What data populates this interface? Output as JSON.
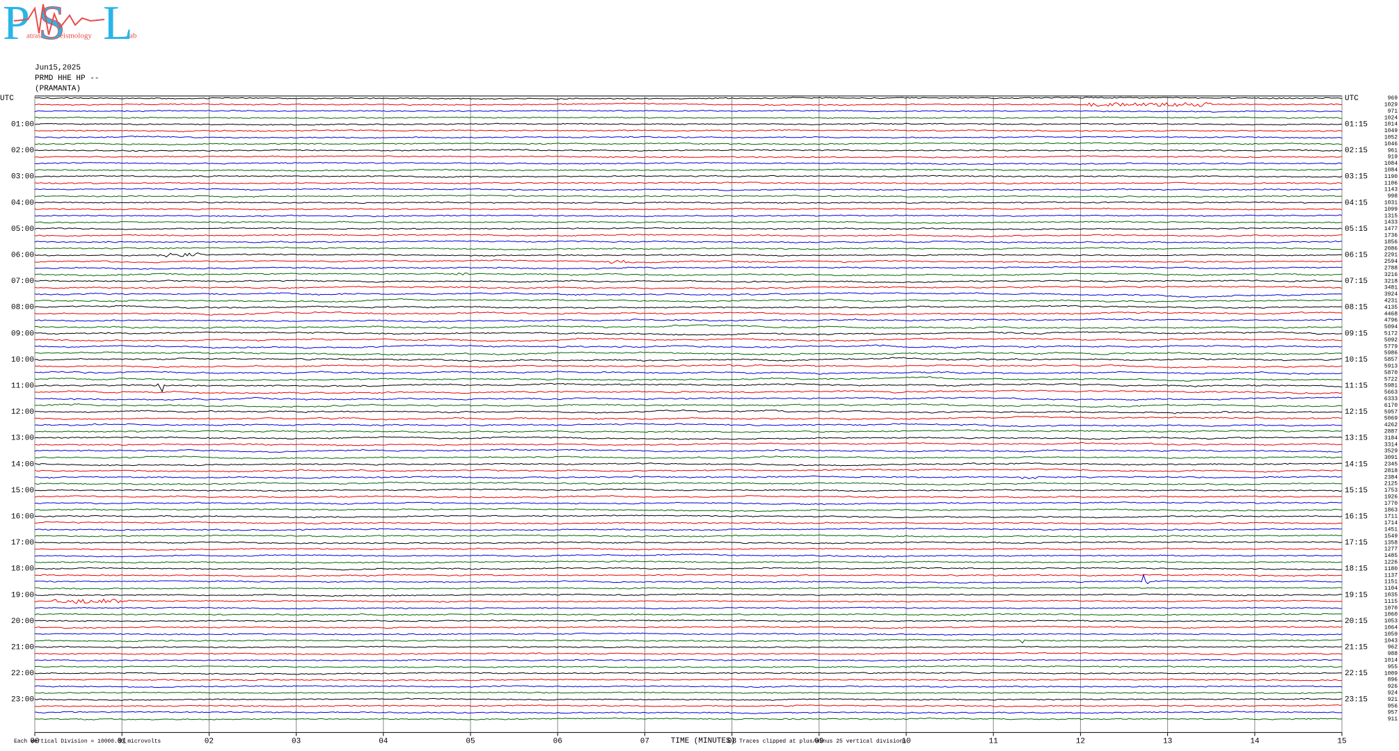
{
  "logo": {
    "letters": [
      "P",
      "S",
      "L"
    ],
    "words": [
      "atras",
      "eismology",
      "ab"
    ]
  },
  "header": {
    "date": "Jun15,2025",
    "station": "PRMD HHE HP --",
    "site": "(PRAMANTA)"
  },
  "left_labels": [
    "UTC",
    "01:00",
    "02:00",
    "03:00",
    "04:00",
    "05:00",
    "06:00",
    "07:00",
    "08:00",
    "09:00",
    "10:00",
    "11:00",
    "12:00",
    "13:00",
    "14:00",
    "15:00",
    "16:00",
    "17:00",
    "18:00",
    "19:00",
    "20:00",
    "21:00",
    "22:00",
    "23:00"
  ],
  "right_labels": [
    "UTC",
    "01:15",
    "02:15",
    "03:15",
    "04:15",
    "05:15",
    "06:15",
    "07:15",
    "08:15",
    "09:15",
    "10:15",
    "11:15",
    "12:15",
    "13:15",
    "14:15",
    "15:15",
    "16:15",
    "17:15",
    "18:15",
    "19:15",
    "20:15",
    "21:15",
    "22:15",
    "23:15"
  ],
  "trace_max": [
    "969",
    "1029",
    "971",
    "1024",
    "1014",
    "1049",
    "1052",
    "1046",
    "961",
    "919",
    "1084",
    "1084",
    "1190",
    "1106",
    "1143",
    "998",
    "1031",
    "1099",
    "1315",
    "1433",
    "1477",
    "1736",
    "1856",
    "2086",
    "2291",
    "2594",
    "2788",
    "3216",
    "3218",
    "3481",
    "3924",
    "4231",
    "4135",
    "4468",
    "4796",
    "5094",
    "5172",
    "5092",
    "5779",
    "5986",
    "5857",
    "5913",
    "5870",
    "5722",
    "5981",
    "5663",
    "6333",
    "6170",
    "5957",
    "5069",
    "4262",
    "2887",
    "3184",
    "3314",
    "3529",
    "3091",
    "2345",
    "2818",
    "2384",
    "2125",
    "1753",
    "1926",
    "1770",
    "1863",
    "1711",
    "1714",
    "1451",
    "1549",
    "1358",
    "1277",
    "1485",
    "1226",
    "1180",
    "1137",
    "1151",
    "1104",
    "1035",
    "1115",
    "1070",
    "1060",
    "1053",
    "1064",
    "1059",
    "1043",
    "962",
    "988",
    "1014",
    "955",
    "1009",
    "896",
    "926",
    "924",
    "921",
    "956",
    "957",
    "911"
  ],
  "x_ticks": [
    "00",
    "01",
    "02",
    "03",
    "04",
    "05",
    "06",
    "07",
    "08",
    "09",
    "10",
    "11",
    "12",
    "13",
    "14",
    "15"
  ],
  "footer": {
    "division": "Each Vertical Division = 10000.00 microvolts",
    "x_title": "TIME (MINUTES)",
    "clip_note": "Traces clipped at plus/minus 25 vertical divisions"
  }
}
